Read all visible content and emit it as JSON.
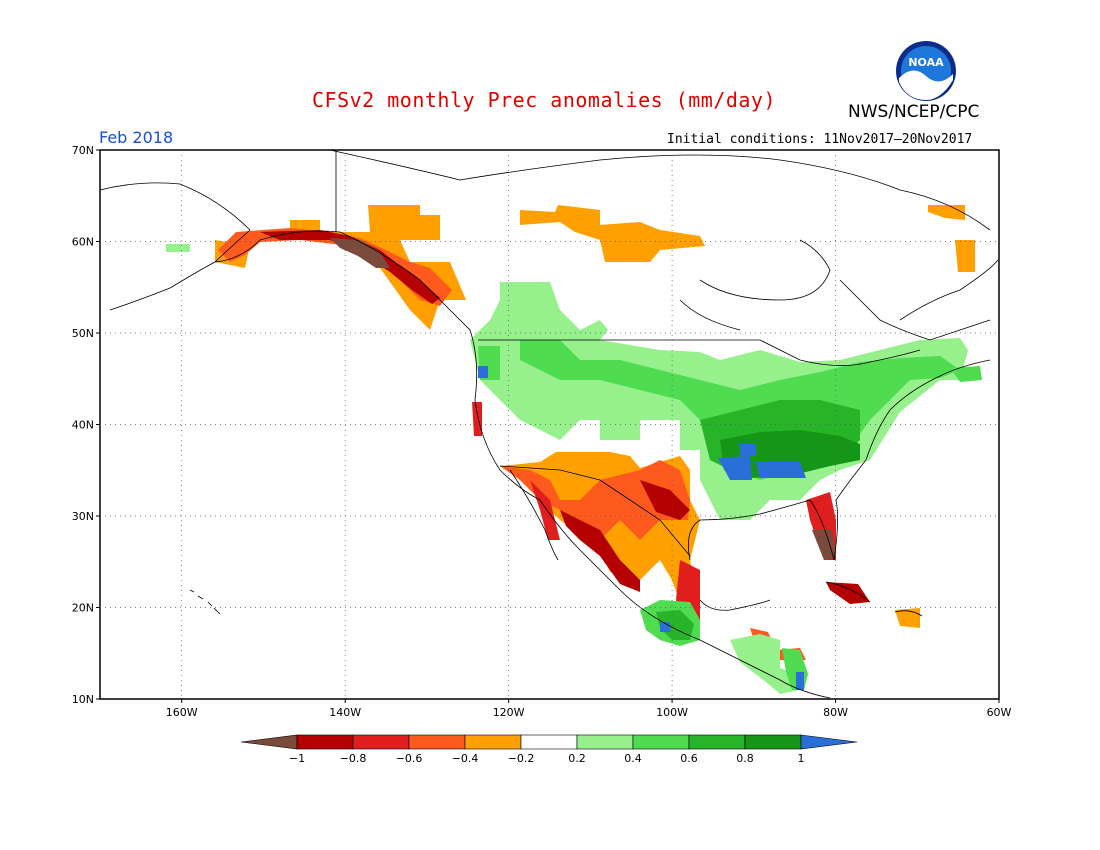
{
  "header": {
    "title": "CFSv2 monthly Prec anomalies (mm/day)",
    "agency": "NWS/NCEP/CPC",
    "period": "Feb 2018",
    "initial_conditions": "Initial conditions: 11Nov2017–20Nov2017",
    "logo_text": "NOAA"
  },
  "axes": {
    "lat_labels": [
      "70N",
      "60N",
      "50N",
      "40N",
      "30N",
      "20N",
      "10N"
    ],
    "lon_labels": [
      "160W",
      "140W",
      "120W",
      "100W",
      "80W",
      "60W"
    ],
    "lat_range": [
      10,
      70
    ],
    "lon_range": [
      -170,
      -60
    ],
    "grid": "dotted"
  },
  "colorbar": {
    "labels": [
      "−1",
      "−0.8",
      "−0.6",
      "−0.4",
      "−0.2",
      "0.2",
      "0.4",
      "0.6",
      "0.8",
      "1"
    ],
    "colors": [
      "#7a4a3c",
      "#b40000",
      "#e01e1e",
      "#ff5a1e",
      "#ffa000",
      "#ffffff",
      "#96f08c",
      "#50dc50",
      "#28b428",
      "#169616",
      "#2a6ed8"
    ]
  },
  "colors": {
    "dry_extreme": "#7a4a3c",
    "dry_strong": "#b40000",
    "dry_med": "#e01e1e",
    "dry_mod": "#ff5a1e",
    "dry_weak": "#ffa000",
    "wet_weak": "#96f08c",
    "wet_mod": "#50dc50",
    "wet_med": "#28b428",
    "wet_strong": "#169616",
    "wet_extreme": "#2a6ed8",
    "title": "#e00000",
    "period": "#1a4fd6"
  }
}
